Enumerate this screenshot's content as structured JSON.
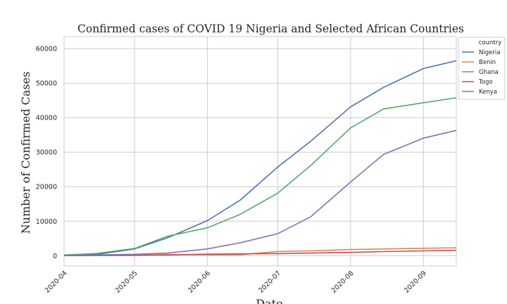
{
  "chart_data": {
    "type": "line",
    "title": "Confirmed cases of COVID 19 Nigeria and Selected African Countries",
    "xlabel": "Date",
    "ylabel": "Number of Confirmed Cases",
    "xlim": [
      "2020-04-01",
      "2020-09-15"
    ],
    "ylim": [
      -3000,
      63500
    ],
    "x_ticks": [
      "2020-04",
      "2020-05",
      "2020-06",
      "2020-07",
      "2020-08",
      "2020-09"
    ],
    "x_tick_dates": [
      "2020-04-01",
      "2020-05-01",
      "2020-06-01",
      "2020-07-01",
      "2020-08-01",
      "2020-09-01"
    ],
    "y_ticks": [
      0,
      10000,
      20000,
      30000,
      40000,
      50000,
      60000
    ],
    "y_tick_labels": [
      "0",
      "10000",
      "20000",
      "30000",
      "40000",
      "50000",
      "60000"
    ],
    "grid": true,
    "legend_title": "country",
    "legend_position": "upper-right-outside",
    "x": [
      "2020-04-01",
      "2020-04-15",
      "2020-05-01",
      "2020-05-15",
      "2020-06-01",
      "2020-06-15",
      "2020-07-01",
      "2020-07-15",
      "2020-08-01",
      "2020-08-15",
      "2020-09-01",
      "2020-09-15"
    ],
    "series": [
      {
        "name": "Nigeria",
        "color": "#4c72b0",
        "values": [
          174,
          373,
          1932,
          5162,
          10162,
          16085,
          25694,
          33153,
          43151,
          48770,
          54247,
          56478
        ]
      },
      {
        "name": "Benin",
        "color": "#dd8452",
        "values": [
          6,
          35,
          64,
          339,
          244,
          288,
          1199,
          1378,
          1770,
          1936,
          2145,
          2264
        ]
      },
      {
        "name": "Ghana",
        "color": "#55a868",
        "values": [
          195,
          641,
          2074,
          5638,
          8070,
          11964,
          18134,
          26125,
          37014,
          42532,
          44298,
          45760
        ]
      },
      {
        "name": "Togo",
        "color": "#c44e52",
        "values": [
          34,
          76,
          116,
          199,
          422,
          524,
          583,
          745,
          934,
          1175,
          1393,
          1558
        ]
      },
      {
        "name": "Kenya",
        "color": "#8172b3",
        "values": [
          81,
          225,
          396,
          758,
          1962,
          3727,
          6366,
          11252,
          21363,
          29334,
          34057,
          36301
        ]
      }
    ]
  }
}
